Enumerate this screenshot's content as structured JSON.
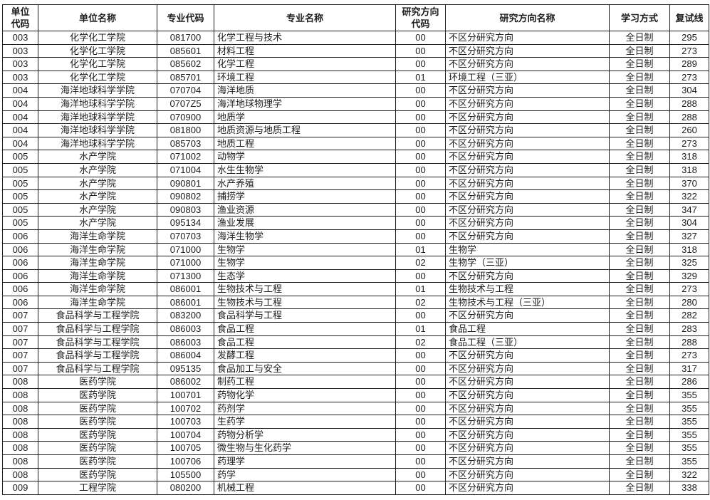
{
  "table": {
    "headers": [
      "单位\n代码",
      "单位名称",
      "专业代码",
      "专业名称",
      "研究方向\n代码",
      "研究方向名称",
      "学习方式",
      "复试线"
    ],
    "rows": [
      [
        "003",
        "化学化工学院",
        "081700",
        "化学工程与技术",
        "00",
        "不区分研究方向",
        "全日制",
        "295"
      ],
      [
        "003",
        "化学化工学院",
        "085601",
        "材料工程",
        "00",
        "不区分研究方向",
        "全日制",
        "273"
      ],
      [
        "003",
        "化学化工学院",
        "085602",
        "化学工程",
        "00",
        "不区分研究方向",
        "全日制",
        "289"
      ],
      [
        "003",
        "化学化工学院",
        "085701",
        "环境工程",
        "01",
        "环境工程（三亚）",
        "全日制",
        "273"
      ],
      [
        "004",
        "海洋地球科学学院",
        "070704",
        "海洋地质",
        "00",
        "不区分研究方向",
        "全日制",
        "304"
      ],
      [
        "004",
        "海洋地球科学学院",
        "0707Z5",
        "海洋地球物理学",
        "00",
        "不区分研究方向",
        "全日制",
        "288"
      ],
      [
        "004",
        "海洋地球科学学院",
        "070900",
        "地质学",
        "00",
        "不区分研究方向",
        "全日制",
        "288"
      ],
      [
        "004",
        "海洋地球科学学院",
        "081800",
        "地质资源与地质工程",
        "00",
        "不区分研究方向",
        "全日制",
        "260"
      ],
      [
        "004",
        "海洋地球科学学院",
        "085703",
        "地质工程",
        "00",
        "不区分研究方向",
        "全日制",
        "273"
      ],
      [
        "005",
        "水产学院",
        "071002",
        "动物学",
        "00",
        "不区分研究方向",
        "全日制",
        "318"
      ],
      [
        "005",
        "水产学院",
        "071004",
        "水生生物学",
        "00",
        "不区分研究方向",
        "全日制",
        "318"
      ],
      [
        "005",
        "水产学院",
        "090801",
        "水产养殖",
        "00",
        "不区分研究方向",
        "全日制",
        "370"
      ],
      [
        "005",
        "水产学院",
        "090802",
        "捕捞学",
        "00",
        "不区分研究方向",
        "全日制",
        "322"
      ],
      [
        "005",
        "水产学院",
        "090803",
        "渔业资源",
        "00",
        "不区分研究方向",
        "全日制",
        "347"
      ],
      [
        "005",
        "水产学院",
        "095134",
        "渔业发展",
        "00",
        "不区分研究方向",
        "全日制",
        "304"
      ],
      [
        "006",
        "海洋生命学院",
        "070703",
        "海洋生物学",
        "00",
        "不区分研究方向",
        "全日制",
        "327"
      ],
      [
        "006",
        "海洋生命学院",
        "071000",
        "生物学",
        "01",
        "生物学",
        "全日制",
        "318"
      ],
      [
        "006",
        "海洋生命学院",
        "071000",
        "生物学",
        "02",
        "生物学（三亚）",
        "全日制",
        "325"
      ],
      [
        "006",
        "海洋生命学院",
        "071300",
        "生态学",
        "00",
        "不区分研究方向",
        "全日制",
        "329"
      ],
      [
        "006",
        "海洋生命学院",
        "086001",
        "生物技术与工程",
        "01",
        "生物技术与工程",
        "全日制",
        "273"
      ],
      [
        "006",
        "海洋生命学院",
        "086001",
        "生物技术与工程",
        "02",
        "生物技术与工程（三亚）",
        "全日制",
        "280"
      ],
      [
        "007",
        "食品科学与工程学院",
        "083200",
        "食品科学与工程",
        "00",
        "不区分研究方向",
        "全日制",
        "282"
      ],
      [
        "007",
        "食品科学与工程学院",
        "086003",
        "食品工程",
        "01",
        "食品工程",
        "全日制",
        "283"
      ],
      [
        "007",
        "食品科学与工程学院",
        "086003",
        "食品工程",
        "02",
        "食品工程（三亚）",
        "全日制",
        "288"
      ],
      [
        "007",
        "食品科学与工程学院",
        "086004",
        "发酵工程",
        "00",
        "不区分研究方向",
        "全日制",
        "273"
      ],
      [
        "007",
        "食品科学与工程学院",
        "095135",
        "食品加工与安全",
        "00",
        "不区分研究方向",
        "全日制",
        "317"
      ],
      [
        "008",
        "医药学院",
        "086002",
        "制药工程",
        "00",
        "不区分研究方向",
        "全日制",
        "286"
      ],
      [
        "008",
        "医药学院",
        "100701",
        "药物化学",
        "00",
        "不区分研究方向",
        "全日制",
        "355"
      ],
      [
        "008",
        "医药学院",
        "100702",
        "药剂学",
        "00",
        "不区分研究方向",
        "全日制",
        "355"
      ],
      [
        "008",
        "医药学院",
        "100703",
        "生药学",
        "00",
        "不区分研究方向",
        "全日制",
        "355"
      ],
      [
        "008",
        "医药学院",
        "100704",
        "药物分析学",
        "00",
        "不区分研究方向",
        "全日制",
        "355"
      ],
      [
        "008",
        "医药学院",
        "100705",
        "微生物与生化药学",
        "00",
        "不区分研究方向",
        "全日制",
        "355"
      ],
      [
        "008",
        "医药学院",
        "100706",
        "药理学",
        "00",
        "不区分研究方向",
        "全日制",
        "355"
      ],
      [
        "008",
        "医药学院",
        "105500",
        "药学",
        "00",
        "不区分研究方向",
        "全日制",
        "322"
      ],
      [
        "009",
        "工程学院",
        "080200",
        "机械工程",
        "00",
        "不区分研究方向",
        "全日制",
        "338"
      ]
    ],
    "colors": {
      "border": "#1f1f1f",
      "text": "#1c1c1c",
      "background": "#ffffff"
    }
  }
}
